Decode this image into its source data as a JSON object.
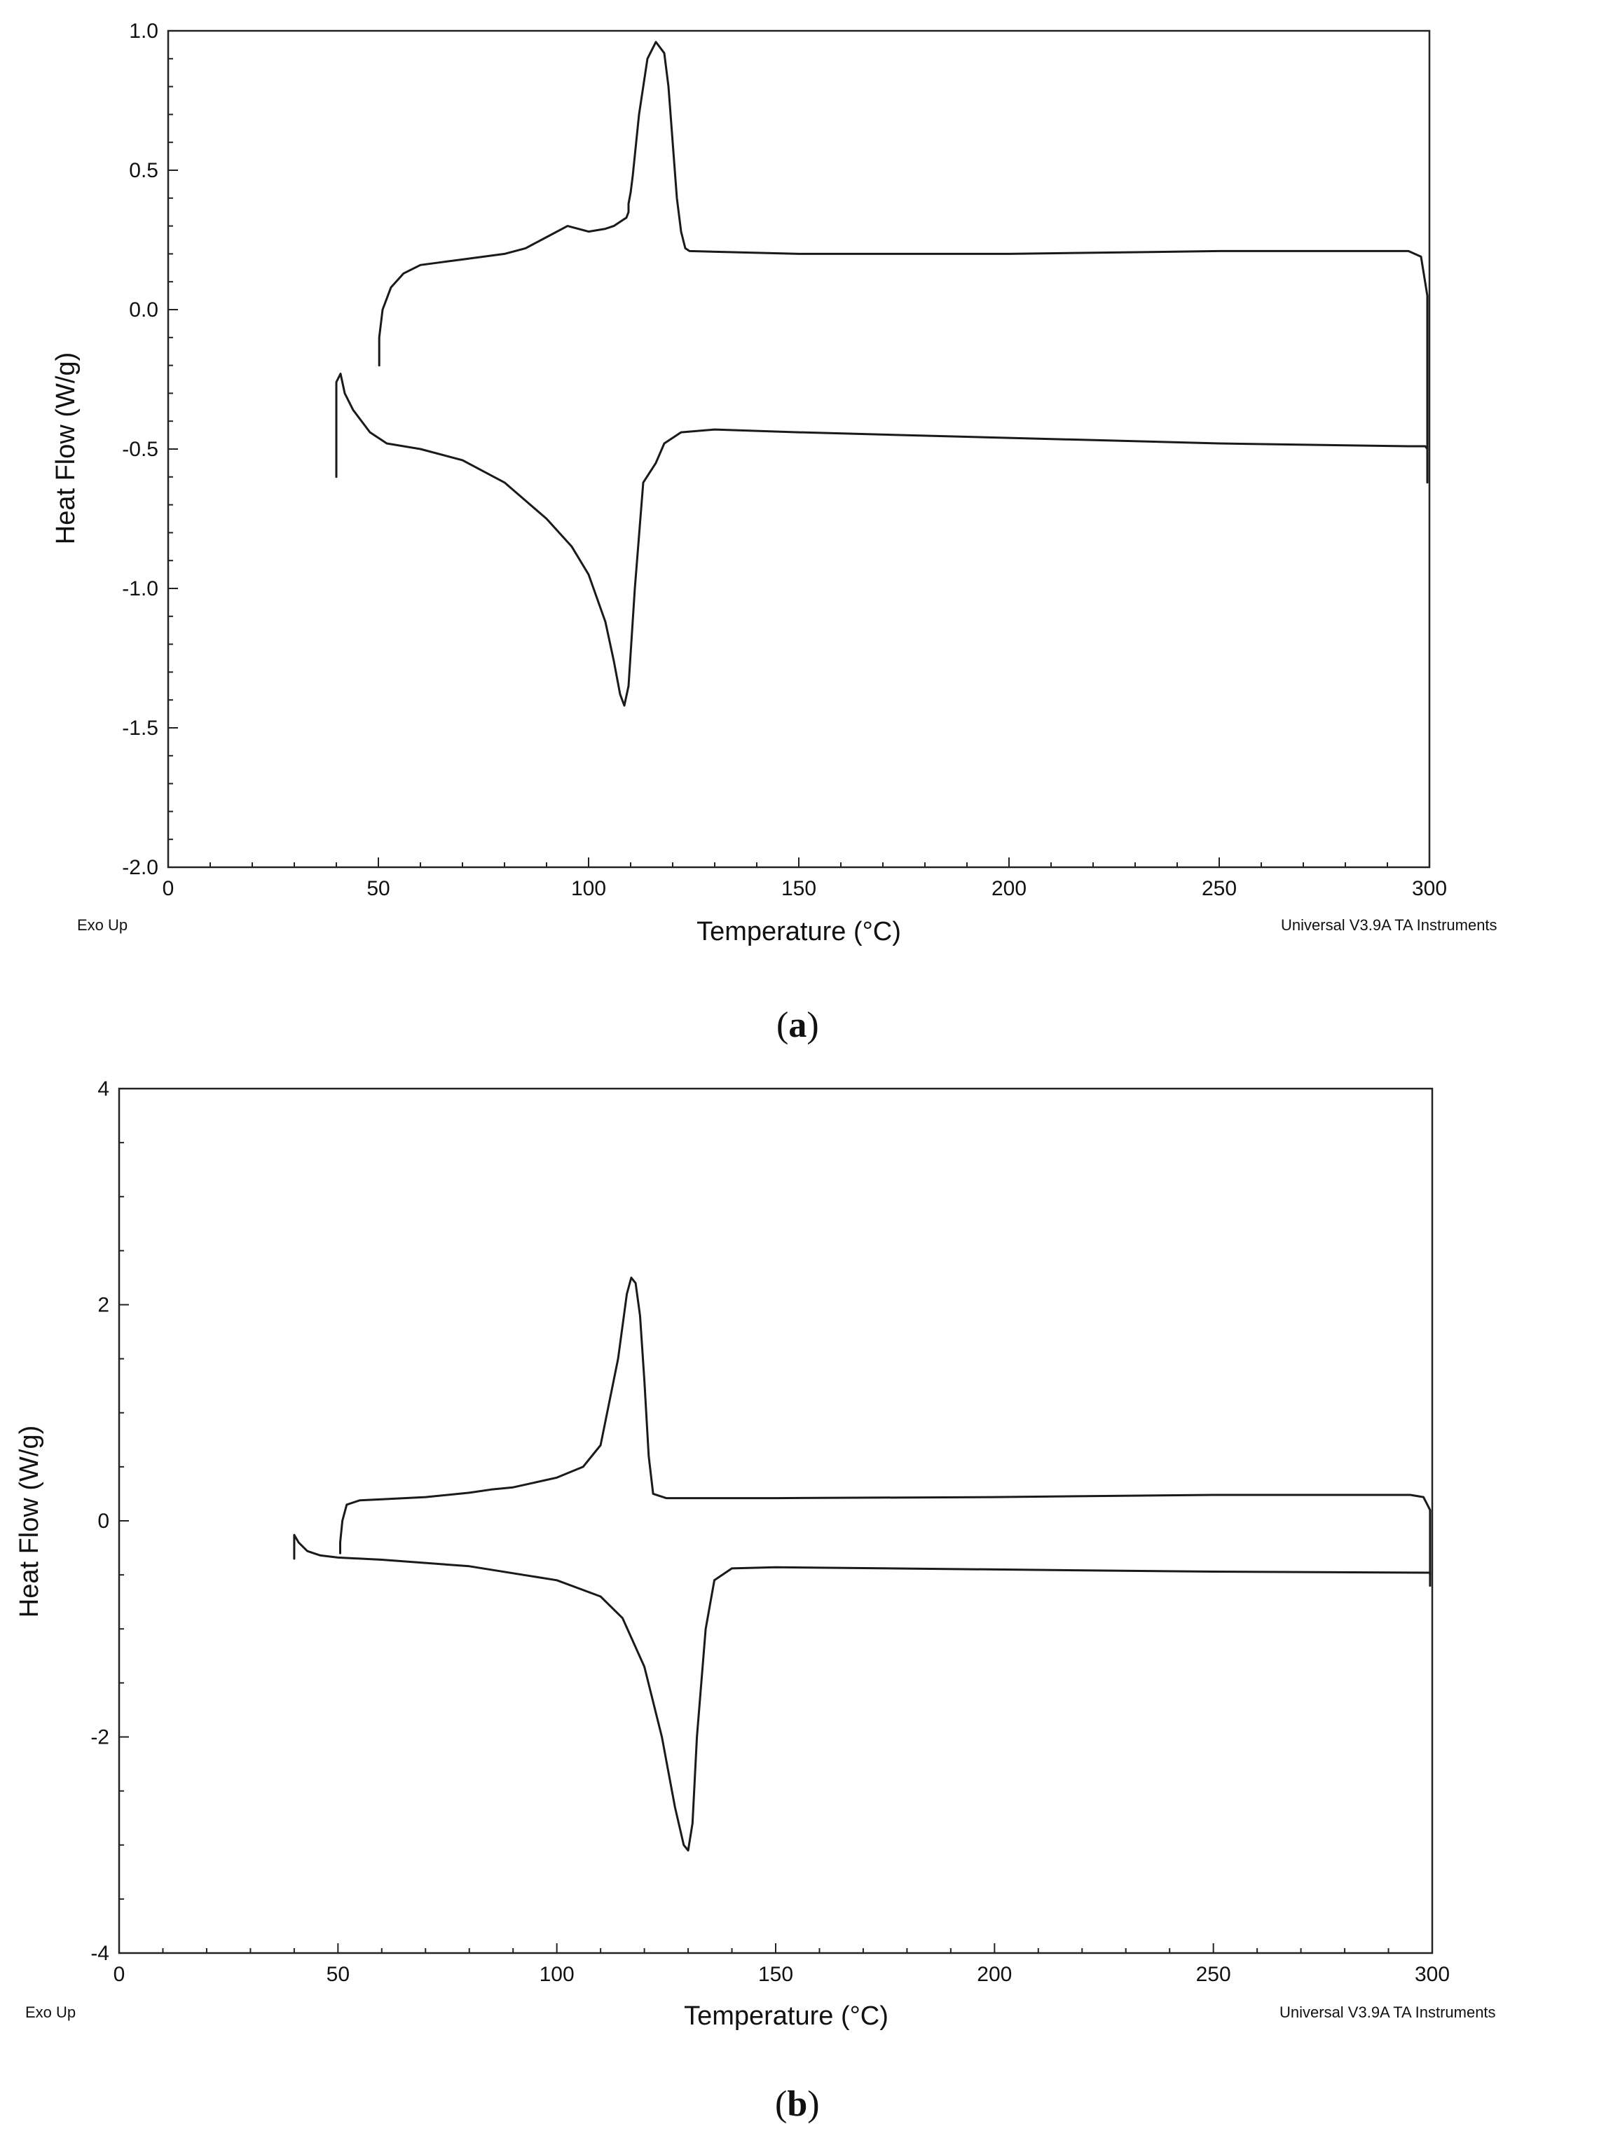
{
  "chart_data": [
    {
      "panel": "a",
      "type": "line",
      "panel_label": "a",
      "xlabel": "Temperature (°C)",
      "ylabel": "Heat Flow (W/g)",
      "footer_left": "Exo Up",
      "footer_right": "Universal V3.9A TA Instruments",
      "xlim": [
        0,
        300
      ],
      "ylim": [
        -2.0,
        1.0
      ],
      "x_ticks": [
        0,
        50,
        100,
        150,
        200,
        250,
        300
      ],
      "x_tick_labels": [
        "0",
        "50",
        "100",
        "150",
        "200",
        "250",
        "300"
      ],
      "y_ticks": [
        1.0,
        0.5,
        0.0,
        -0.5,
        -1.0,
        -1.5,
        -2.0
      ],
      "y_tick_labels": [
        "1.0",
        "0.5",
        "0.0",
        "-0.5",
        "-1.0",
        "-1.5",
        "-2.0"
      ],
      "grid": false,
      "series": [
        {
          "x": [
            40,
            40,
            41,
            42,
            44,
            48,
            52,
            60,
            70,
            80,
            90,
            96,
            100,
            104,
            106,
            107.5,
            108.5,
            109.5,
            111,
            113,
            116,
            118,
            122,
            130,
            150,
            200,
            250,
            295,
            298,
            299,
            299.5,
            299.5
          ],
          "y": [
            -0.6,
            -0.26,
            -0.23,
            -0.3,
            -0.36,
            -0.44,
            -0.48,
            -0.5,
            -0.54,
            -0.62,
            -0.75,
            -0.85,
            -0.95,
            -1.12,
            -1.26,
            -1.38,
            -1.42,
            -1.35,
            -1.0,
            -0.62,
            -0.55,
            -0.48,
            -0.44,
            -0.43,
            -0.44,
            -0.46,
            -0.48,
            -0.49,
            -0.49,
            -0.49,
            -0.5,
            -0.62
          ]
        },
        {
          "x": [
            299.5,
            299.5,
            298,
            295,
            250,
            200,
            150,
            124,
            123,
            122,
            121,
            120,
            119,
            118,
            116,
            114,
            112,
            110.5,
            110,
            109.5,
            109.5,
            109,
            108,
            106,
            104,
            100,
            95,
            90,
            85,
            80,
            75,
            70,
            65,
            60,
            56,
            53,
            51,
            50.2,
            50.2
          ],
          "y": [
            -0.6,
            0.05,
            0.19,
            0.21,
            0.21,
            0.2,
            0.2,
            0.21,
            0.22,
            0.28,
            0.4,
            0.6,
            0.8,
            0.92,
            0.96,
            0.9,
            0.7,
            0.48,
            0.42,
            0.38,
            0.35,
            0.33,
            0.32,
            0.3,
            0.29,
            0.28,
            0.3,
            0.26,
            0.22,
            0.2,
            0.19,
            0.18,
            0.17,
            0.16,
            0.13,
            0.08,
            0.0,
            -0.1,
            -0.2
          ]
        }
      ]
    },
    {
      "panel": "b",
      "type": "line",
      "panel_label": "b",
      "xlabel": "Temperature (°C)",
      "ylabel": "Heat Flow (W/g)",
      "footer_left": "Exo Up",
      "footer_right": "Universal V3.9A TA Instruments",
      "xlim": [
        0,
        300
      ],
      "ylim": [
        -4,
        4
      ],
      "x_ticks": [
        0,
        50,
        100,
        150,
        200,
        250,
        300
      ],
      "x_tick_labels": [
        "0",
        "50",
        "100",
        "150",
        "200",
        "250",
        "300"
      ],
      "y_ticks": [
        4,
        2,
        0,
        -2,
        -4
      ],
      "y_tick_labels": [
        "4",
        "2",
        "0",
        "-2",
        "-4"
      ],
      "grid": false,
      "series": [
        {
          "x": [
            40,
            40,
            41,
            43,
            46,
            50,
            60,
            80,
            100,
            110,
            115,
            120,
            124,
            127,
            129,
            130,
            131,
            132,
            134,
            136,
            140,
            150,
            200,
            250,
            298,
            299.5,
            299.5
          ],
          "y": [
            -0.35,
            -0.13,
            -0.2,
            -0.28,
            -0.32,
            -0.34,
            -0.36,
            -0.42,
            -0.55,
            -0.7,
            -0.9,
            -1.35,
            -2.0,
            -2.65,
            -3.0,
            -3.05,
            -2.8,
            -2.0,
            -1.0,
            -0.55,
            -0.44,
            -0.43,
            -0.45,
            -0.47,
            -0.48,
            -0.48,
            -0.6
          ]
        },
        {
          "x": [
            299.5,
            299.5,
            298,
            295,
            250,
            200,
            150,
            125,
            122,
            121,
            120,
            119,
            118,
            117,
            116,
            114,
            110,
            106,
            100,
            90,
            85,
            80,
            70,
            60,
            55,
            52,
            51,
            50.5,
            50.5
          ],
          "y": [
            -0.5,
            0.1,
            0.22,
            0.24,
            0.24,
            0.22,
            0.21,
            0.21,
            0.25,
            0.6,
            1.3,
            1.9,
            2.2,
            2.25,
            2.1,
            1.5,
            0.7,
            0.5,
            0.4,
            0.31,
            0.29,
            0.26,
            0.22,
            0.2,
            0.19,
            0.15,
            0.0,
            -0.2,
            -0.3
          ]
        }
      ]
    }
  ]
}
